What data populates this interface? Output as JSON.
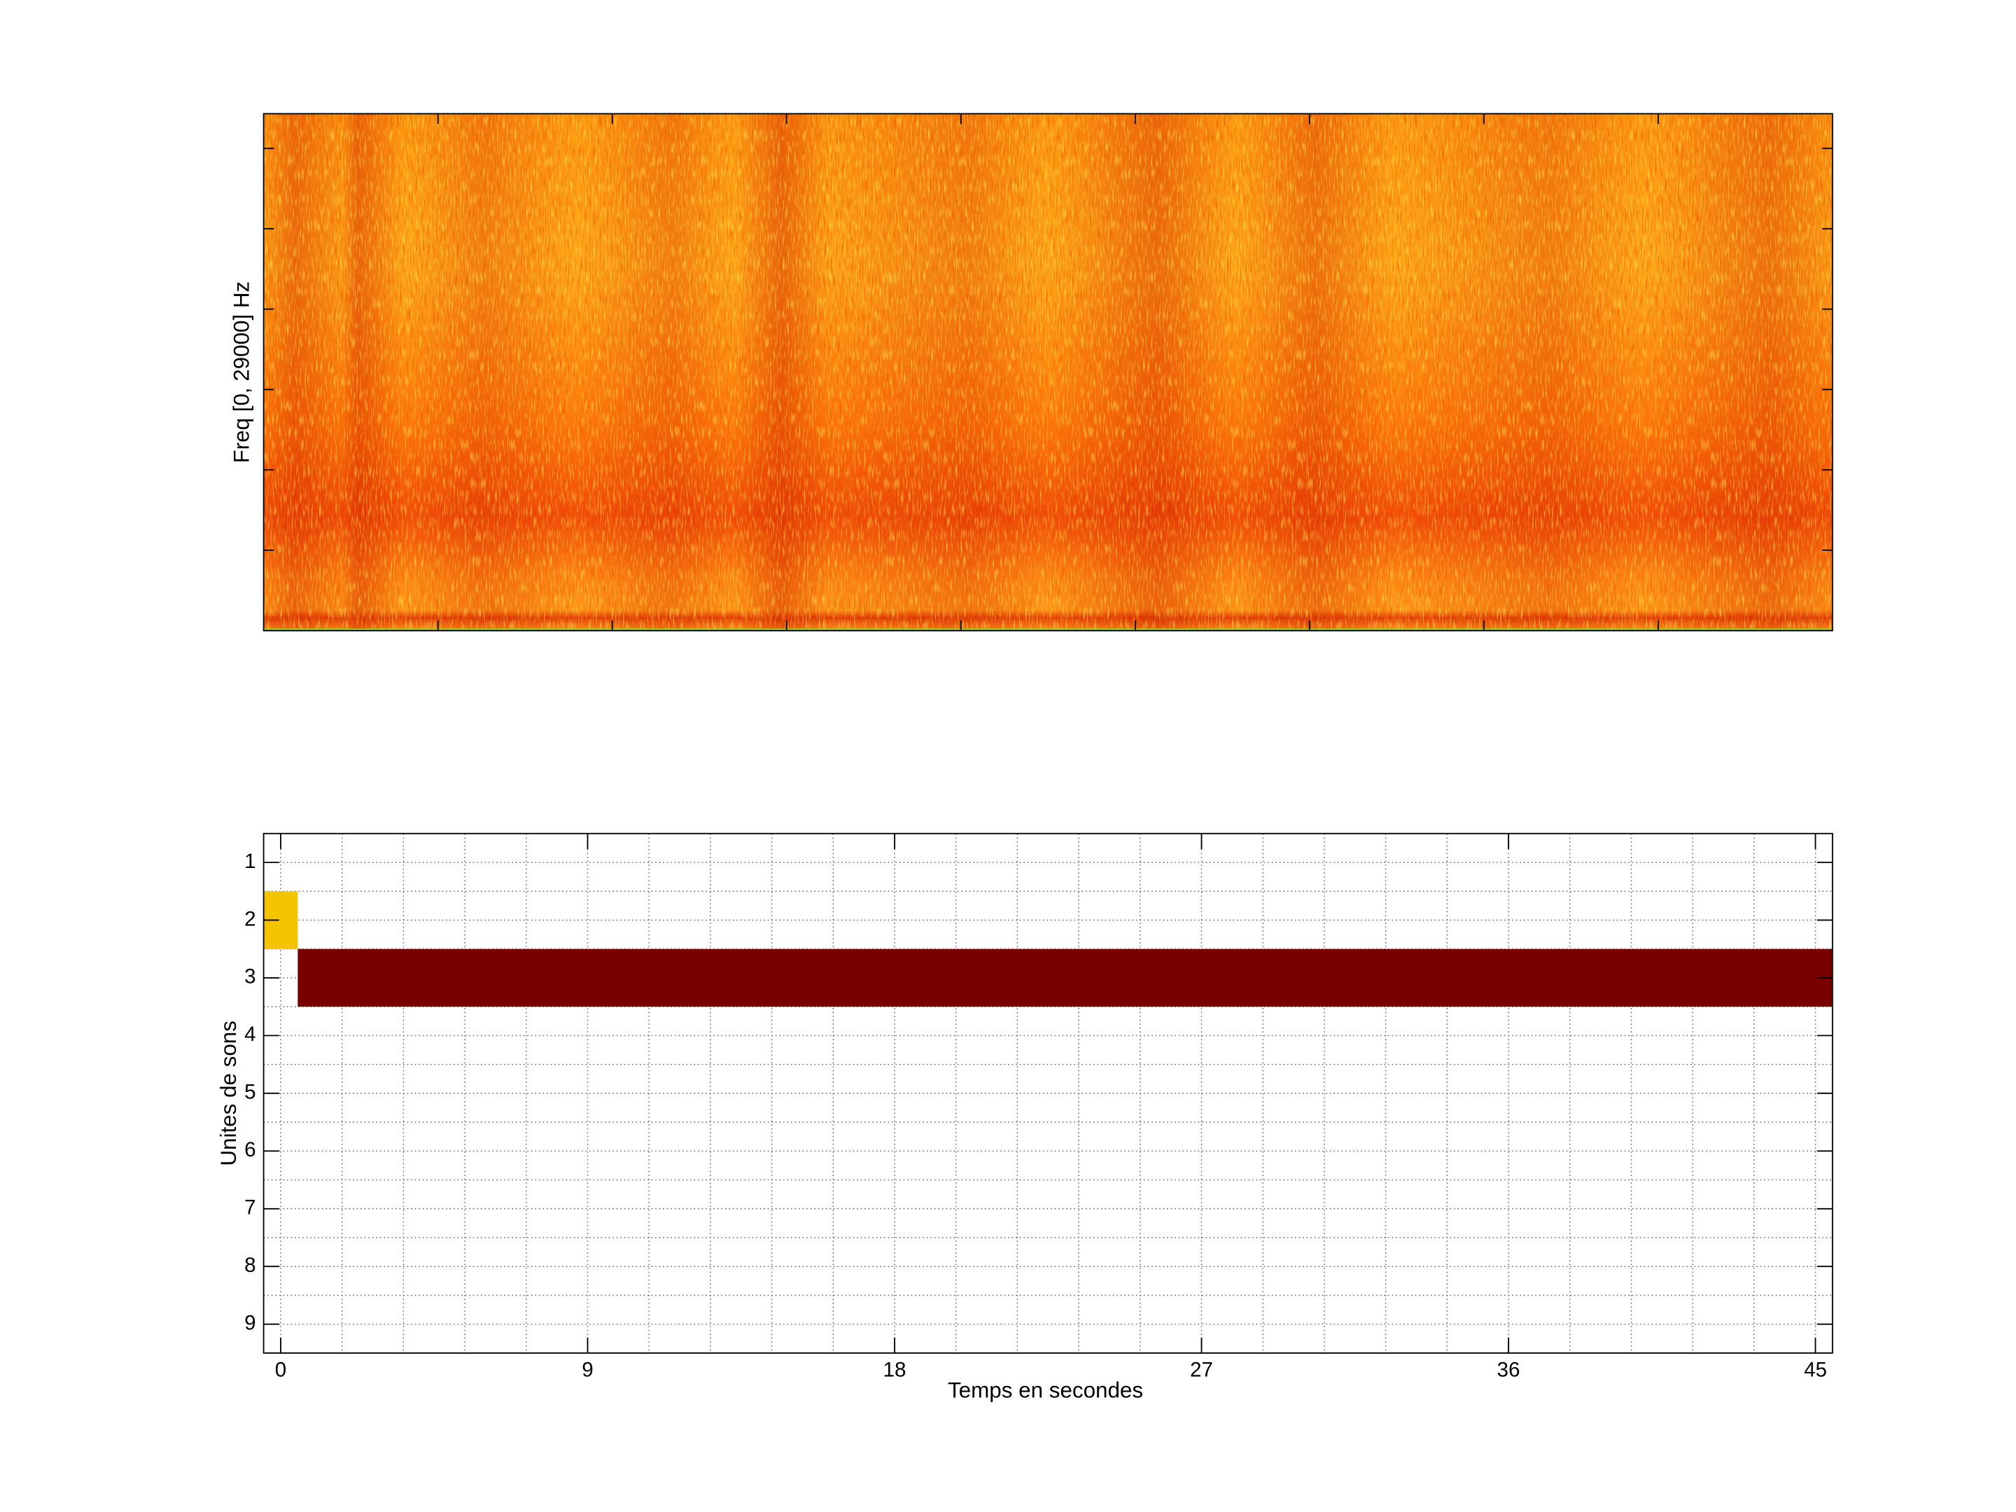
{
  "chart_data": [
    {
      "type": "spectrogram",
      "ylabel": "Freq [0, 29000] Hz"
    },
    {
      "type": "segments",
      "xlabel": "Temps en secondes",
      "ylabel": "Unites de sons",
      "xlim": [
        -0.5,
        45.5
      ],
      "xticks": [
        0,
        9,
        18,
        27,
        36,
        45
      ],
      "ylim": [
        0.5,
        9.5
      ],
      "yticks": [
        1,
        2,
        3,
        4,
        5,
        6,
        7,
        8,
        9
      ],
      "y_reversed": true,
      "grid": true,
      "x_minor_ticks": [
        0,
        1.8,
        3.6,
        5.4,
        7.2,
        9,
        10.8,
        12.6,
        14.4,
        16.2,
        18,
        19.8,
        21.6,
        23.4,
        25.2,
        27,
        28.8,
        30.6,
        32.4,
        34.2,
        36,
        37.8,
        39.6,
        41.4,
        43.2,
        45
      ],
      "y_minor_ticks": [
        1,
        1.5,
        2,
        2.5,
        3,
        3.5,
        4,
        4.5,
        5,
        5.5,
        6,
        6.5,
        7,
        7.5,
        8,
        8.5,
        9
      ],
      "segments": [
        {
          "unit": 2,
          "start": -0.5,
          "end": 0.5,
          "color": "#f5c400"
        },
        {
          "unit": 3,
          "start": 0.5,
          "end": 45.5,
          "color": "#780000"
        }
      ]
    }
  ]
}
